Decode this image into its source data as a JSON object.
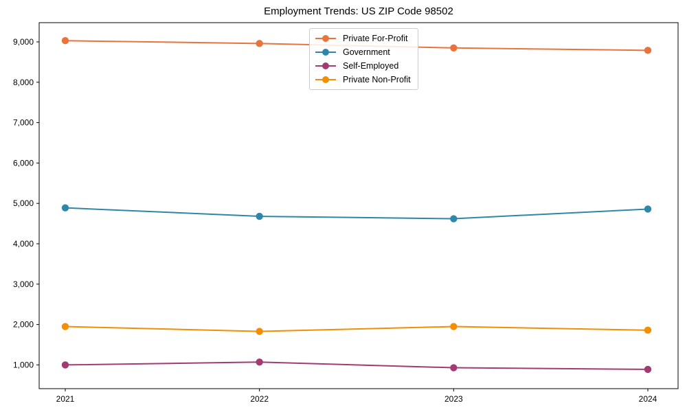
{
  "chart_data": {
    "type": "line",
    "title": "Employment Trends: US ZIP Code 98502",
    "xlabel": "",
    "ylabel": "",
    "x": [
      "2021",
      "2022",
      "2023",
      "2024"
    ],
    "series": [
      {
        "name": "Private For-Profit",
        "color": "#E8743B",
        "values": [
          9030,
          8960,
          8850,
          8790
        ]
      },
      {
        "name": "Government",
        "color": "#2E86AB",
        "values": [
          4890,
          4680,
          4620,
          4860
        ]
      },
      {
        "name": "Self-Employed",
        "color": "#A23B72",
        "values": [
          1000,
          1070,
          930,
          890
        ]
      },
      {
        "name": "Private Non-Profit",
        "color": "#F18F01",
        "values": [
          1950,
          1830,
          1950,
          1860
        ]
      }
    ],
    "y_ticks": [
      1000,
      2000,
      3000,
      4000,
      5000,
      6000,
      7000,
      8000,
      9000
    ],
    "y_tick_labels": [
      "1,000",
      "2,000",
      "3,000",
      "4,000",
      "5,000",
      "6,000",
      "7,000",
      "8,000",
      "9,000"
    ],
    "ylim": [
      412,
      9476
    ],
    "grid": false,
    "marker": "circle",
    "legend_position": "upper center",
    "axis_color": "#000000"
  }
}
